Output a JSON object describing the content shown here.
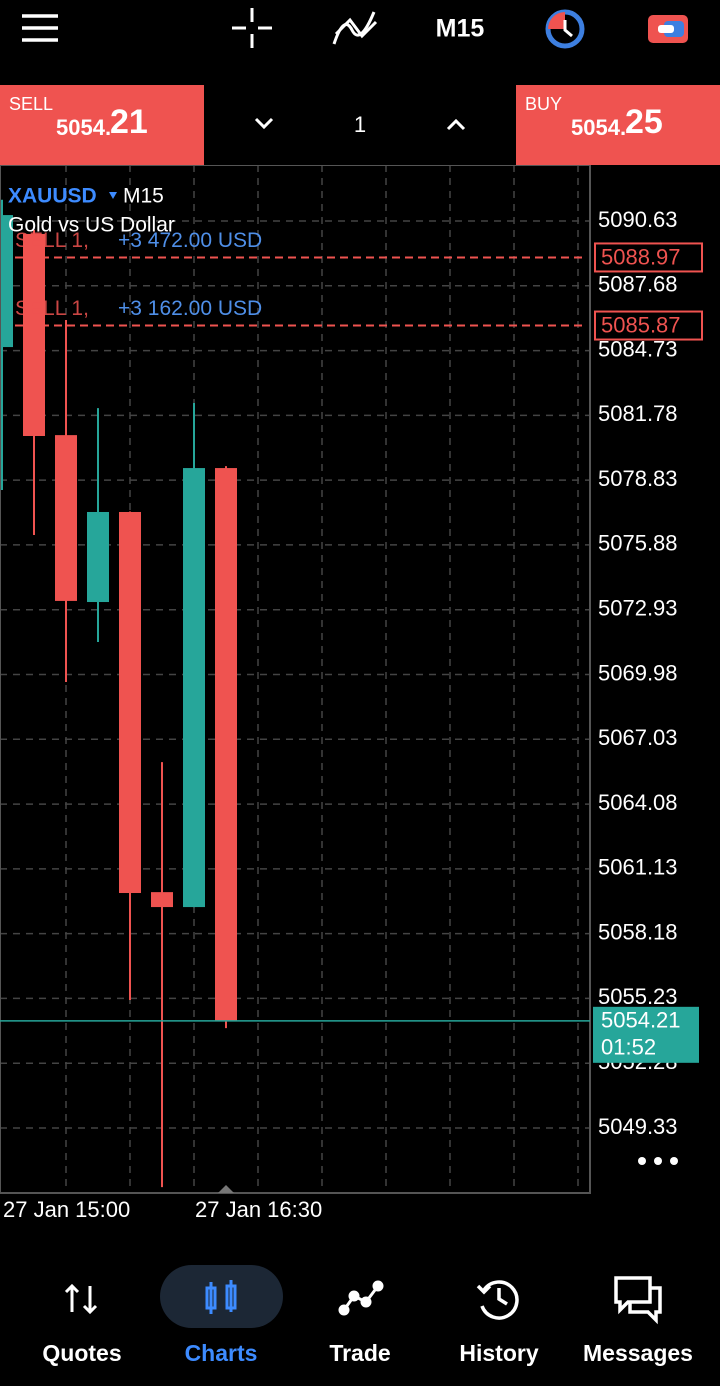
{
  "toolbar": {
    "timeframe": "M15"
  },
  "trade_bar": {
    "sell_label": "SELL",
    "sell_price_main": "5054.",
    "sell_price_big": "21",
    "quantity": "1",
    "buy_label": "BUY",
    "buy_price_main": "5054.",
    "buy_price_big": "25"
  },
  "chart_data": {
    "type": "candlestick",
    "symbol": "XAUUSD",
    "timeframe": "M15",
    "subtitle": "Gold vs US Dollar",
    "categories": [
      "27 Jan 15:00",
      null,
      null,
      null,
      null,
      null,
      "27 Jan 16:30",
      null
    ],
    "open": [
      5084.89,
      5090.04,
      5080.88,
      5073.28,
      5077.38,
      5060.07,
      5059.39,
      5079.38
    ],
    "high": [
      5091.6,
      5090.22,
      5086.12,
      5082.11,
      5077.4,
      5065.99,
      5082.34,
      5079.47
    ],
    "low": [
      5078.38,
      5076.33,
      5069.64,
      5071.46,
      5055.16,
      5046.64,
      5059.39,
      5053.88
    ],
    "close": [
      5090.9,
      5080.84,
      5073.33,
      5077.38,
      5060.03,
      5059.39,
      5079.38,
      5054.21
    ],
    "up_color": "#26a69a",
    "down_color": "#ef5350",
    "ylim": [
      5046.37,
      5093.18
    ],
    "yticks": [
      5090.63,
      5087.68,
      5084.73,
      5081.78,
      5078.83,
      5075.88,
      5072.93,
      5069.98,
      5067.03,
      5064.08,
      5061.13,
      5058.18,
      5055.23,
      5052.28,
      5049.33
    ],
    "grid": true,
    "current_price": 5054.21,
    "countdown": "01:52",
    "orders": [
      {
        "label": "SELL 1,",
        "profit": "+3 472.00 USD",
        "price": 5088.97
      },
      {
        "label": "SELL 1,",
        "profit": "+3 162.00 USD",
        "price": 5085.87
      }
    ]
  },
  "nav": [
    "Quotes",
    "Charts",
    "Trade",
    "History",
    "Messages"
  ]
}
